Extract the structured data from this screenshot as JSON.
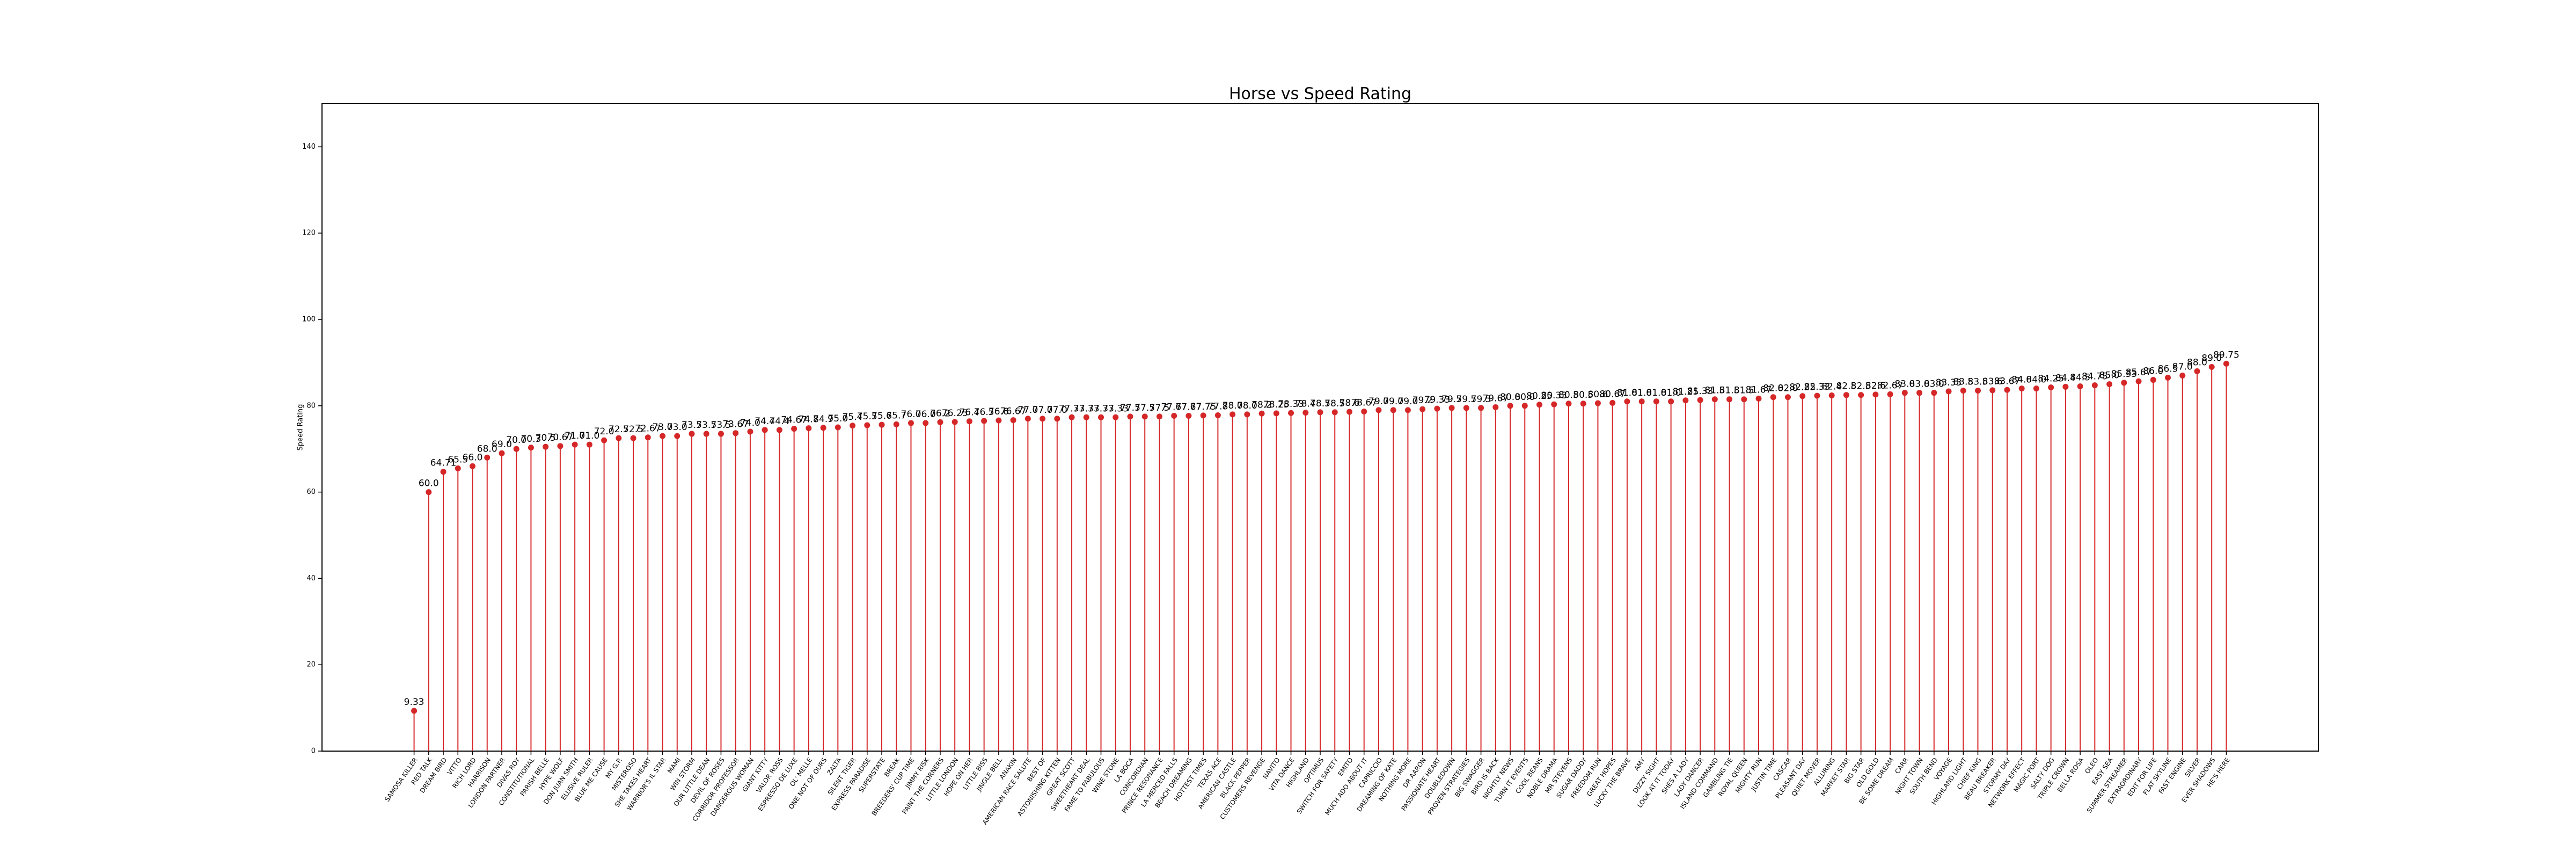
{
  "chart_data": {
    "type": "lollipop",
    "title": "Horse vs Speed Rating",
    "y_label": "Speed Rating",
    "categories": [
      "SAMOSA KILLER",
      "RED TALK",
      "DREAM BIRD",
      "VITTO",
      "RICH LORD",
      "HARRISON",
      "LONDON PARTNER",
      "DIVAS ROY",
      "CONSTITUTIONAL",
      "PARISH BELLE",
      "HYPE WOLF",
      "DON JUAN SMITH",
      "ELUSIVE RULER",
      "BLUE ME CAUSE",
      "MY G.P.",
      "MISTEROSO",
      "SHE TAKES HEART",
      "WARRIOR'S IL STAR",
      "MAMI",
      "WIN STORM",
      "OUR LITTLE DEAN",
      "DEVIL OF ROSES",
      "CORRIDOR PROFESSOR",
      "DANGEROUS WOMAN",
      "GIANT KITTY",
      "VALOR ROSS",
      "ESPRESSO DE LUXE",
      "OL' MELLE",
      "ONE NOT OF OURS",
      "ZALTA",
      "SILENT TIGER",
      "EXPRESS PARADISE",
      "SUPERSTATE",
      "BREAK",
      "BREEDERS' CUP TIME",
      "JIMMY RISK",
      "PAINT THE CORNERS",
      "LITTLE LONDON",
      "HOPE ON HER",
      "LITTLE BISS",
      "JINGLE BELL",
      "ANAKIN",
      "AMERICAN RACE SALUTE",
      "BEST OF",
      "ASTONISHING KITTEN",
      "GREAT SCOTT",
      "SWEETHEART DEAL",
      "FAME TO FABULOUS",
      "WINE STONE",
      "LA BOCA",
      "CONCORDIAN",
      "PRINCE RESONANCE",
      "LA MERCED FALLS",
      "BEACH DREAMING",
      "HOTTEST TIMES",
      "TEXAS ACE",
      "AMERICAN CASTLE",
      "BLACK PEPPER",
      "CUSTOMERS REVENGE",
      "NAVITO",
      "VITA DANCE",
      "HIGHLAND",
      "OPTIMUS",
      "SWITCH FOR SAFETY",
      "EMITO",
      "MUCH ADO ABOUT IT",
      "CAPRICCIO",
      "DREAMING OF KATE",
      "NOTHING MORE",
      "DR AARON",
      "PASSIONATE HEART",
      "DOUBLEDOWN",
      "PROVEN STRATEGIES",
      "BIG SWAGGER",
      "BIRD IS BACK",
      "NIGHTLY NEWS",
      "TURN IT EVENTS",
      "COOL BEANS",
      "NOBLE DRAMA",
      "MR STEVENS",
      "SUGAR DADDY",
      "FREEDOM RUN",
      "GREAT HOPES",
      "LUCKY THE BRAVE",
      "AMY",
      "DIZZY SIGHT",
      "LOOK AT IT TODAY",
      "SHES A LADY",
      "LADY DANCER",
      "ISLAND COMMAND",
      "GAMBLING TIE",
      "ROYAL QUEEN",
      "MIGHTY RUN",
      "JUSTIN TIME",
      "CASCAR",
      "PLEASANT DAY",
      "QUIET MOVER",
      "ALLURING",
      "MARKET STAR",
      "BIG STAR",
      "OLD GOLD",
      "BE SOME DREAM",
      "CARR",
      "NIGHT TOWN",
      "SOUTH BEND",
      "VOYAGE",
      "HIGHLAND LIGHT",
      "CHIEF KING",
      "BEAU BREAKER",
      "STORMY DAY",
      "NETWORK EFFECT",
      "MAGIC PORT",
      "SALTY DOG",
      "TRIPLE CROWN",
      "BELLA ROSA",
      "OLEO",
      "EASY SEA",
      "SUMMER STREAMER",
      "EXTRAORDINARY",
      "EDIT FOR LIFE",
      "FLAT SKYLINE",
      "FAST ENGINE",
      "SILVER",
      "EVER SHADOWS",
      "HE'S HERE"
    ],
    "values": [
      9.33,
      60.0,
      64.71,
      65.5,
      66.0,
      68.0,
      69.0,
      70.0,
      70.3,
      70.5,
      70.67,
      71.0,
      71.0,
      72.0,
      72.5,
      72.5,
      72.67,
      73.0,
      73.0,
      73.5,
      73.5,
      73.5,
      73.67,
      74.0,
      74.4,
      74.4,
      74.67,
      74.8,
      74.9,
      75.0,
      75.4,
      75.5,
      75.6,
      75.7,
      76.0,
      76.0,
      76.2,
      76.25,
      76.4,
      76.5,
      76.6,
      76.67,
      77.0,
      77.0,
      77.0,
      77.33,
      77.33,
      77.33,
      77.33,
      77.5,
      77.5,
      77.5,
      77.67,
      77.67,
      77.75,
      77.8,
      78.0,
      78.0,
      78.2,
      78.25,
      78.33,
      78.4,
      78.5,
      78.5,
      78.6,
      78.67,
      79.0,
      79.0,
      79.0,
      79.2,
      79.33,
      79.5,
      79.5,
      79.5,
      79.67,
      80.0,
      80.0,
      80.25,
      80.33,
      80.5,
      80.5,
      80.6,
      80.67,
      81.0,
      81.0,
      81.0,
      81.0,
      81.25,
      81.33,
      81.5,
      81.5,
      81.5,
      81.67,
      82.0,
      82.0,
      82.25,
      82.33,
      82.4,
      82.5,
      82.5,
      82.6,
      82.67,
      83.0,
      83.0,
      83.0,
      83.33,
      83.5,
      83.5,
      83.6,
      83.67,
      84.0,
      84.0,
      84.25,
      84.4,
      84.5,
      84.75,
      85.0,
      85.33,
      85.67,
      86.0,
      86.5,
      87.0,
      88.0,
      89.0,
      89.75
    ],
    "value_labels": [
      "9.33",
      "60.0",
      "64.71",
      "65.5",
      "66.0",
      "68.0",
      "69.0",
      "70.0",
      "70.3",
      "70.5",
      "70.67",
      "71.0",
      "71.0",
      "72.0",
      "72.5",
      "72.5",
      "72.67",
      "73.0",
      "73.0",
      "73.5",
      "73.5",
      "73.5",
      "73.67",
      "74.0",
      "74.4",
      "74.4",
      "74.67",
      "74.8",
      "74.9",
      "75.0",
      "75.4",
      "75.5",
      "75.6",
      "75.7",
      "76.0",
      "76.0",
      "76.2",
      "76.25",
      "76.4",
      "76.5",
      "76.6",
      "76.67",
      "77.0",
      "77.0",
      "77.0",
      "77.33",
      "77.33",
      "77.33",
      "77.33",
      "77.5",
      "77.5",
      "77.5",
      "77.67",
      "77.67",
      "77.75",
      "77.8",
      "78.0",
      "78.0",
      "78.2",
      "78.25",
      "78.33",
      "78.4",
      "78.5",
      "78.5",
      "78.6",
      "78.67",
      "79.0",
      "79.0",
      "79.0",
      "79.2",
      "79.33",
      "79.5",
      "79.5",
      "79.5",
      "79.67",
      "80.0",
      "80.0",
      "80.25",
      "80.33",
      "80.5",
      "80.5",
      "80.6",
      "80.67",
      "81.0",
      "81.0",
      "81.0",
      "81.0",
      "81.25",
      "81.33",
      "81.5",
      "81.5",
      "81.5",
      "81.67",
      "82.0",
      "82.0",
      "82.25",
      "82.33",
      "82.4",
      "82.5",
      "82.5",
      "82.6",
      "82.67",
      "83.0",
      "83.0",
      "83.0",
      "83.33",
      "83.5",
      "83.5",
      "83.6",
      "83.67",
      "84.0",
      "84.0",
      "84.25",
      "84.4",
      "84.5",
      "84.75",
      "85.0",
      "85.33",
      "85.67",
      "86.0",
      "86.5",
      "87.0",
      "88.0",
      "89.0",
      "89.75"
    ],
    "color": "#d62728",
    "ylim": [
      0,
      150
    ],
    "yticks": [
      0,
      20,
      40,
      60,
      80,
      100,
      120,
      140
    ]
  }
}
